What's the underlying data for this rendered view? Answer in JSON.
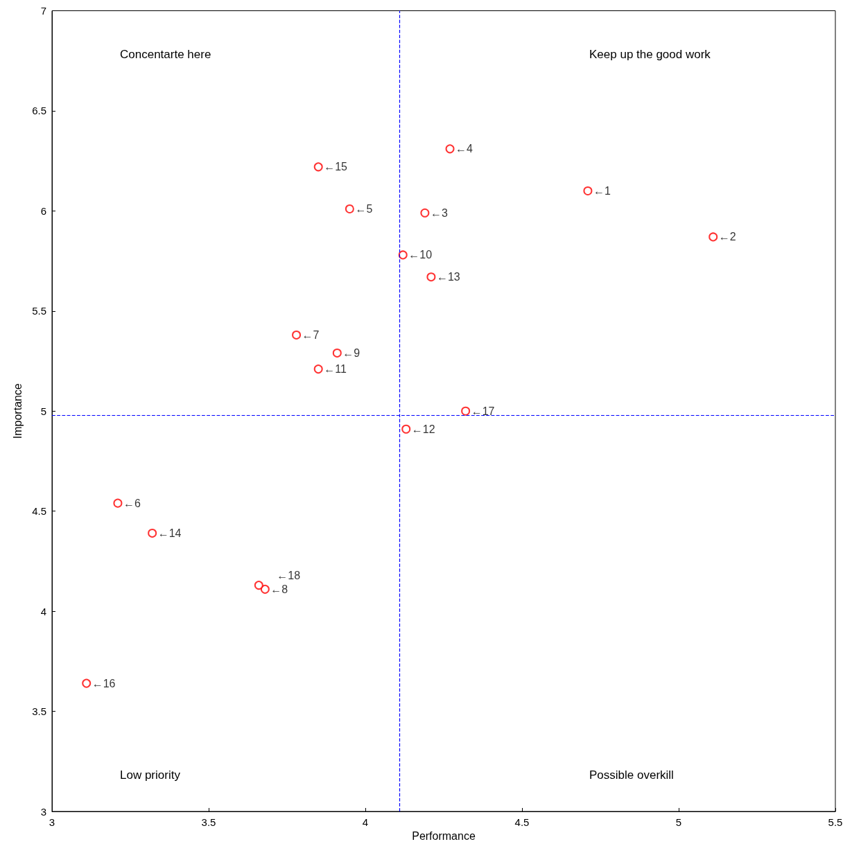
{
  "chart_data": {
    "type": "scatter",
    "xlabel": "Performance",
    "ylabel": "Importance",
    "x": [
      4.71,
      5.11,
      4.19,
      4.27,
      3.95,
      3.21,
      3.78,
      3.68,
      3.91,
      4.12,
      3.85,
      4.13,
      4.21,
      3.32,
      3.85,
      3.11,
      4.32,
      3.66
    ],
    "series": [
      {
        "color": "#ff0000",
        "values": [
          6.1,
          5.87,
          5.99,
          6.31,
          6.01,
          4.54,
          5.38,
          4.11,
          5.29,
          5.78,
          5.21,
          4.91,
          5.67,
          4.39,
          6.22,
          3.64,
          5.0,
          4.13
        ]
      }
    ],
    "xlim": [
      3,
      5.5
    ],
    "xticks": [
      3,
      3.5,
      4,
      4.5,
      5,
      5.5
    ],
    "ylim": [
      3,
      7
    ],
    "yticks": [
      3,
      3.5,
      4,
      4.5,
      5,
      5.5,
      6,
      6.5,
      7
    ],
    "marker": "circle",
    "grid": false,
    "ref_lines": [
      {
        "axis": "x",
        "value": 4.11,
        "color": "#0000ff",
        "line_style": "dashed"
      },
      {
        "axis": "y",
        "value": 4.98,
        "color": "#0000ff",
        "line_style": "dashed"
      }
    ],
    "annotations": [
      "Concentarte here",
      "Keep up the good work",
      "Low priority",
      "Possible overkill",
      {
        "text": "←1",
        "x": 4.71,
        "y": 6.1
      },
      {
        "text": "←2",
        "x": 5.11,
        "y": 5.87
      },
      {
        "text": "←3",
        "x": 4.19,
        "y": 5.99
      },
      {
        "text": "←4",
        "x": 4.27,
        "y": 6.31
      },
      {
        "text": "←5",
        "x": 3.95,
        "y": 6.01
      },
      {
        "text": "←6",
        "x": 3.21,
        "y": 4.54
      },
      {
        "text": "←7",
        "x": 3.78,
        "y": 5.38
      },
      {
        "text": "←8",
        "x": 3.68,
        "y": 4.11
      },
      {
        "text": "←9",
        "x": 3.91,
        "y": 5.29
      },
      {
        "text": "←10",
        "x": 4.12,
        "y": 5.78
      },
      {
        "text": "←11",
        "x": 3.85,
        "y": 5.21
      },
      {
        "text": "←12",
        "x": 4.13,
        "y": 4.91
      },
      {
        "text": "←13",
        "x": 4.21,
        "y": 5.67
      },
      {
        "text": "←14",
        "x": 3.32,
        "y": 4.39
      },
      {
        "text": "←15",
        "x": 3.85,
        "y": 6.22
      },
      {
        "text": "←16",
        "x": 3.11,
        "y": 3.64
      },
      {
        "text": "←17",
        "x": 4.32,
        "y": 5.0
      },
      {
        "text": "←18",
        "x": 3.66,
        "y": 4.13
      }
    ]
  }
}
